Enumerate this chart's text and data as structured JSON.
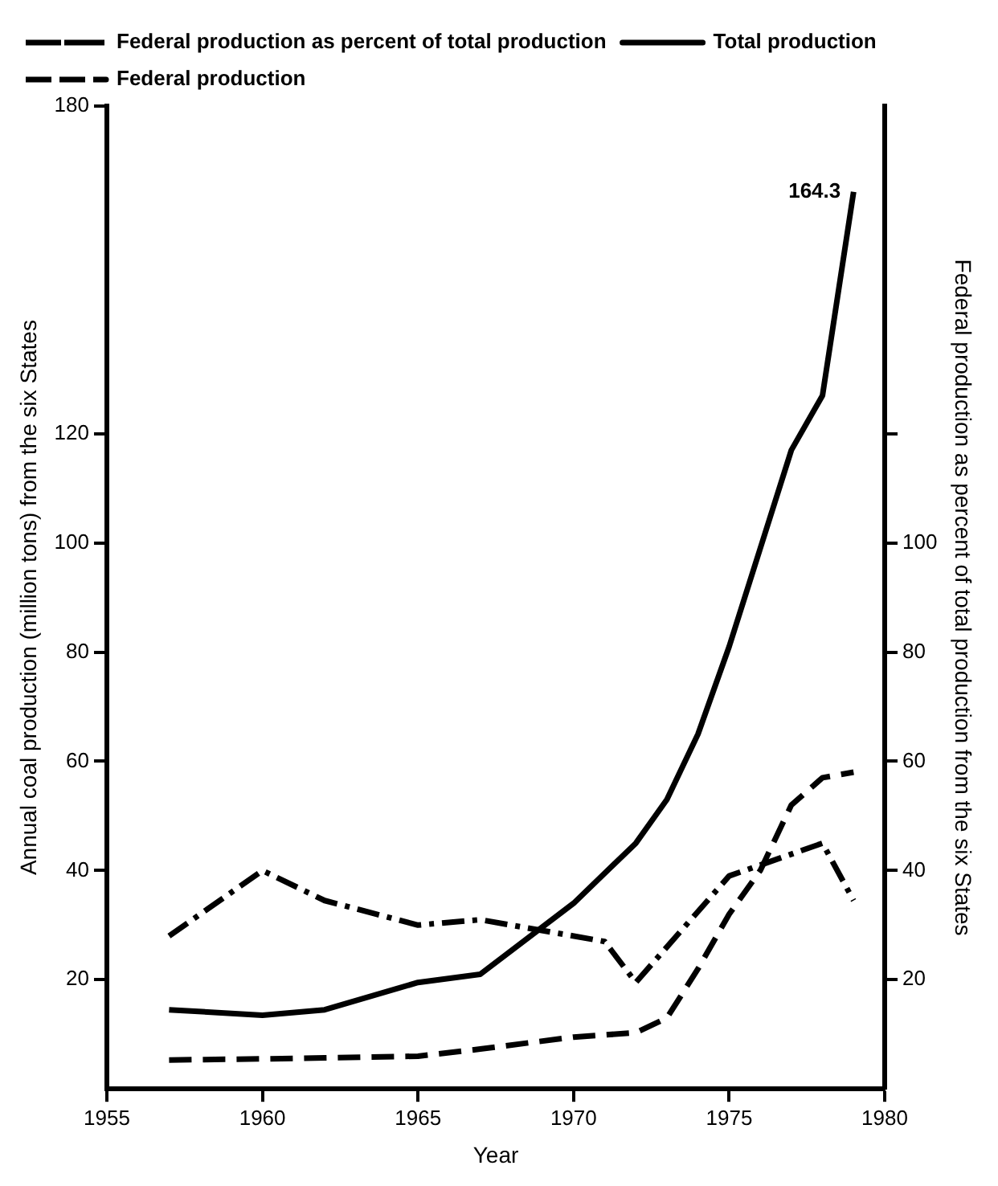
{
  "chart_data": {
    "type": "line",
    "xlabel": "Year",
    "ylabel": "Annual coal production (million tons) from the six States",
    "y2label": "Federal production as percent of total production from the six States",
    "xlim": [
      1955,
      1980
    ],
    "xticks": [
      1955,
      1960,
      1965,
      1970,
      1975,
      1980
    ],
    "ylim": [
      0,
      180
    ],
    "yticks": [
      20,
      40,
      60,
      80,
      100,
      120,
      180
    ],
    "y2lim": [
      0,
      180
    ],
    "y2ticks": [
      20,
      40,
      60,
      80,
      100,
      {
        "value": 120,
        "label": null
      }
    ],
    "grid": false,
    "legend": "top left",
    "marker": "none",
    "annotations": [
      {
        "text": "164.3",
        "x": 1979,
        "y": 164.3
      }
    ],
    "series": [
      {
        "name": "Federal production as percent of total production",
        "color": "#000000",
        "axis": "y2",
        "line_style": "dashdot",
        "x": [
          1957,
          1960,
          1962,
          1965,
          1967,
          1971,
          1972,
          1975,
          1976,
          1978,
          1979
        ],
        "values": [
          28,
          40,
          34.5,
          30,
          31,
          27,
          19.5,
          39,
          41,
          45,
          34.5
        ]
      },
      {
        "name": "Total production",
        "color": "#000000",
        "line_style": "solid",
        "x": [
          1957,
          1960,
          1962,
          1965,
          1967,
          1970,
          1972,
          1973,
          1974,
          1975,
          1976,
          1977,
          1978,
          1979
        ],
        "values": [
          14.5,
          13.5,
          14.5,
          19.5,
          21,
          34,
          45,
          53,
          65,
          81,
          99,
          117,
          127,
          164.3
        ]
      },
      {
        "name": "Federal production",
        "color": "#000000",
        "line_style": "dashed",
        "x": [
          1957,
          1960,
          1962,
          1965,
          1967,
          1970,
          1972,
          1973,
          1974,
          1975,
          1976,
          1977,
          1978,
          1979
        ],
        "values": [
          5.3,
          5.5,
          5.7,
          6,
          7.3,
          9.5,
          10.3,
          13,
          22,
          32,
          40,
          52,
          57,
          58
        ]
      }
    ]
  }
}
